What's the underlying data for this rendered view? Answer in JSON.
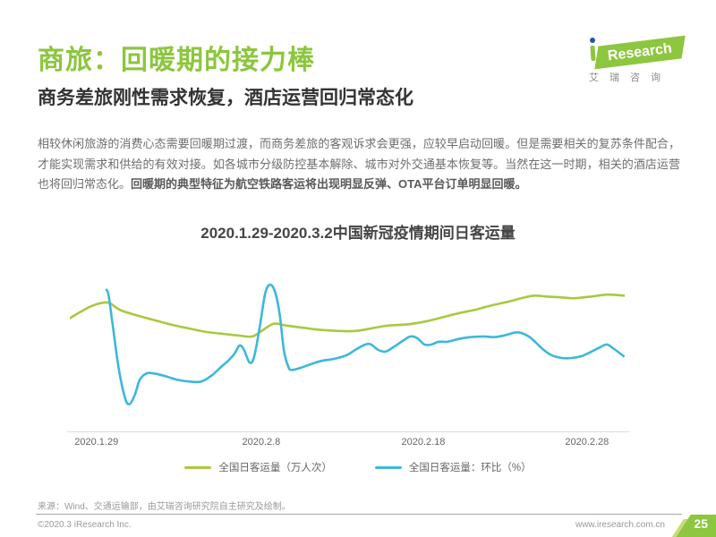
{
  "page": {
    "title": "商旅：回暖期的接力棒",
    "subtitle": "商务差旅刚性需求恢复，酒店运营回归常态化",
    "intro_normal": "相较休闲旅游的消费心态需要回暖期过渡，而商务差旅的客观诉求会更强，应较早启动回暖。但是需要相关的复苏条件配合，才能实现需求和供给的有效对接。如各城市分级防控基本解除、城市对外交通基本恢复等。当然在这一时期，相关的酒店运营也将回归常态化。",
    "intro_bold": "回暖期的典型特征为航空铁路客运将出现明显反弹、OTA平台订单明显回暖。",
    "source_note": "来源：Wind、交通运输部，由艾瑞咨询研究院自主研究及绘制。",
    "footer": {
      "copyright": "©2020.3 iResearch Inc.",
      "website": "www.iresearch.com.cn",
      "page_number": "25"
    }
  },
  "logo": {
    "brand_text": "Research",
    "brand_cn": "艾瑞咨询"
  },
  "colors": {
    "title_green": "#8cc63e",
    "brand_green": "#8dc63f",
    "badge_light_green": "#c9dc77",
    "line_green": "#a9c93f",
    "line_blue": "#3cb8d9"
  },
  "chart_data": {
    "type": "line",
    "title": "2020.1.29-2020.3.2中国新冠疫情期间日客运量",
    "date_start": "2020.1.29",
    "date_end": "2020.3.2",
    "grid": false,
    "legend_position": "bottom",
    "x_axis": {
      "tick_labels": [
        "2020.1.29",
        "2020.2.8",
        "2020.2.18",
        "2020.2.28"
      ],
      "tick_positions": [
        0.048,
        0.345,
        0.637,
        0.932
      ]
    },
    "y_axis": {
      "visible": false,
      "scale": "relative height 0-100, no numeric y axis shown in figure"
    },
    "series": [
      {
        "name": "全国日客运量（万人次）",
        "color": "#a9c93f",
        "points": [
          [
            0.0,
            72.7
          ],
          [
            0.031,
            79.1
          ],
          [
            0.052,
            82.0
          ],
          [
            0.07,
            82.6
          ],
          [
            0.091,
            77.9
          ],
          [
            0.122,
            74.4
          ],
          [
            0.152,
            71.5
          ],
          [
            0.182,
            68.6
          ],
          [
            0.212,
            66.3
          ],
          [
            0.243,
            64.0
          ],
          [
            0.272,
            62.8
          ],
          [
            0.303,
            61.6
          ],
          [
            0.329,
            61.0
          ],
          [
            0.348,
            65.1
          ],
          [
            0.368,
            69.2
          ],
          [
            0.389,
            68.0
          ],
          [
            0.425,
            66.3
          ],
          [
            0.454,
            65.1
          ],
          [
            0.485,
            64.5
          ],
          [
            0.515,
            64.5
          ],
          [
            0.546,
            66.3
          ],
          [
            0.575,
            68.0
          ],
          [
            0.606,
            68.6
          ],
          [
            0.637,
            70.3
          ],
          [
            0.666,
            72.7
          ],
          [
            0.697,
            75.6
          ],
          [
            0.728,
            77.9
          ],
          [
            0.759,
            80.8
          ],
          [
            0.788,
            83.1
          ],
          [
            0.819,
            86.0
          ],
          [
            0.838,
            87.2
          ],
          [
            0.859,
            86.6
          ],
          [
            0.888,
            86.0
          ],
          [
            0.909,
            85.5
          ],
          [
            0.94,
            86.6
          ],
          [
            0.969,
            87.8
          ],
          [
            1.0,
            87.2
          ]
        ]
      },
      {
        "name": "全国日客运量：环比（%）",
        "color": "#3cb8d9",
        "points": [
          [
            0.066,
            91.0
          ],
          [
            0.07,
            87.2
          ],
          [
            0.078,
            66.3
          ],
          [
            0.088,
            40.7
          ],
          [
            0.099,
            22.1
          ],
          [
            0.107,
            17.4
          ],
          [
            0.117,
            23.3
          ],
          [
            0.126,
            33.1
          ],
          [
            0.138,
            37.2
          ],
          [
            0.152,
            37.2
          ],
          [
            0.172,
            35.5
          ],
          [
            0.194,
            33.1
          ],
          [
            0.216,
            32.0
          ],
          [
            0.237,
            32.0
          ],
          [
            0.256,
            36.0
          ],
          [
            0.274,
            41.9
          ],
          [
            0.287,
            45.9
          ],
          [
            0.297,
            50.0
          ],
          [
            0.306,
            55.2
          ],
          [
            0.314,
            52.3
          ],
          [
            0.324,
            44.2
          ],
          [
            0.332,
            47.7
          ],
          [
            0.342,
            66.3
          ],
          [
            0.352,
            88.4
          ],
          [
            0.361,
            94.2
          ],
          [
            0.37,
            89.5
          ],
          [
            0.378,
            75.6
          ],
          [
            0.386,
            51.7
          ],
          [
            0.394,
            41.3
          ],
          [
            0.4,
            39.5
          ],
          [
            0.415,
            40.7
          ],
          [
            0.438,
            43.6
          ],
          [
            0.454,
            45.3
          ],
          [
            0.475,
            46.5
          ],
          [
            0.498,
            48.8
          ],
          [
            0.517,
            52.9
          ],
          [
            0.533,
            55.8
          ],
          [
            0.543,
            55.8
          ],
          [
            0.556,
            52.3
          ],
          [
            0.569,
            51.2
          ],
          [
            0.583,
            54.1
          ],
          [
            0.6,
            58.1
          ],
          [
            0.614,
            61.0
          ],
          [
            0.626,
            59.9
          ],
          [
            0.639,
            55.8
          ],
          [
            0.652,
            55.8
          ],
          [
            0.665,
            57.6
          ],
          [
            0.681,
            57.6
          ],
          [
            0.7,
            59.3
          ],
          [
            0.721,
            60.5
          ],
          [
            0.746,
            61.0
          ],
          [
            0.763,
            60.5
          ],
          [
            0.783,
            61.6
          ],
          [
            0.801,
            63.4
          ],
          [
            0.812,
            63.4
          ],
          [
            0.827,
            61.0
          ],
          [
            0.84,
            57.0
          ],
          [
            0.854,
            52.3
          ],
          [
            0.869,
            48.8
          ],
          [
            0.887,
            47.1
          ],
          [
            0.904,
            47.1
          ],
          [
            0.922,
            48.3
          ],
          [
            0.94,
            51.2
          ],
          [
            0.956,
            54.1
          ],
          [
            0.968,
            55.8
          ],
          [
            0.981,
            52.9
          ],
          [
            0.998,
            48.3
          ]
        ]
      }
    ]
  }
}
